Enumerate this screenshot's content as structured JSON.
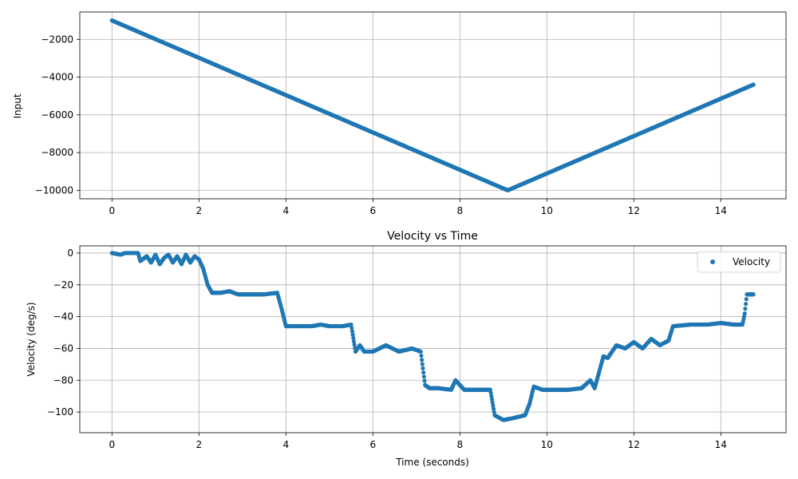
{
  "colors": {
    "series": "#1f77b4",
    "grid": "#b0b0b0",
    "axes": "#000000",
    "background": "#ffffff"
  },
  "chart_data": [
    {
      "type": "scatter",
      "title": "",
      "xlabel": "",
      "ylabel": "Input",
      "xlim": [
        -0.74,
        15.5
      ],
      "ylim": [
        -10450,
        -550
      ],
      "xticks": [
        0,
        2,
        4,
        6,
        8,
        10,
        12,
        14
      ],
      "yticks": [
        -2000,
        -4000,
        -6000,
        -8000,
        -10000
      ],
      "xtick_labels": [
        "0",
        "2",
        "4",
        "6",
        "8",
        "10",
        "12",
        "14"
      ],
      "ytick_labels": [
        "−2000",
        "−4000",
        "−6000",
        "−8000",
        "−10000"
      ],
      "grid": true,
      "legend": null,
      "series": [
        {
          "color": "#1f77b4",
          "x": [
            0,
            9.1,
            14.75
          ],
          "y": [
            -1000,
            -10000,
            -4400
          ],
          "description_points_dense": true
        }
      ]
    },
    {
      "type": "scatter",
      "title": "Velocity vs Time",
      "xlabel": "Time (seconds)",
      "ylabel": "Velocity (deg/s)",
      "xlim": [
        -0.74,
        15.5
      ],
      "ylim": [
        -113,
        4.5
      ],
      "xticks": [
        0,
        2,
        4,
        6,
        8,
        10,
        12,
        14
      ],
      "yticks": [
        0,
        -20,
        -40,
        -60,
        -80,
        -100
      ],
      "xtick_labels": [
        "0",
        "2",
        "4",
        "6",
        "8",
        "10",
        "12",
        "14"
      ],
      "ytick_labels": [
        "0",
        "−20",
        "−40",
        "−60",
        "−80",
        "−100"
      ],
      "grid": true,
      "legend": {
        "position": "top-right",
        "entries": [
          "Velocity"
        ]
      },
      "series": [
        {
          "name": "Velocity",
          "color": "#1f77b4",
          "x": [
            0,
            0.2,
            0.3,
            0.6,
            0.65,
            0.8,
            0.9,
            1.0,
            1.1,
            1.2,
            1.3,
            1.4,
            1.5,
            1.6,
            1.7,
            1.8,
            1.9,
            2.0,
            2.1,
            2.2,
            2.3,
            2.5,
            2.7,
            2.9,
            3.2,
            3.5,
            3.8,
            3.9,
            4.0,
            4.3,
            4.6,
            4.8,
            5.0,
            5.3,
            5.5,
            5.6,
            5.7,
            5.8,
            6.0,
            6.3,
            6.6,
            6.9,
            7.1,
            7.2,
            7.3,
            7.5,
            7.8,
            7.9,
            8.1,
            8.4,
            8.7,
            8.8,
            9.0,
            9.2,
            9.5,
            9.6,
            9.7,
            9.9,
            10.2,
            10.5,
            10.8,
            11.0,
            11.1,
            11.3,
            11.4,
            11.6,
            11.8,
            12.0,
            12.2,
            12.4,
            12.6,
            12.8,
            12.9,
            13.3,
            13.7,
            14.0,
            14.3,
            14.5,
            14.55,
            14.6,
            14.75
          ],
          "y": [
            0,
            -1,
            0,
            0,
            -5,
            -2,
            -6,
            -1,
            -7,
            -3,
            -1,
            -6,
            -2,
            -7,
            -1,
            -6,
            -2,
            -4,
            -10,
            -20,
            -25,
            -25,
            -24,
            -26,
            -26,
            -26,
            -25,
            -35,
            -46,
            -46,
            -46,
            -45,
            -46,
            -46,
            -45,
            -62,
            -58,
            -62,
            -62,
            -58,
            -62,
            -60,
            -62,
            -83,
            -85,
            -85,
            -86,
            -80,
            -86,
            -86,
            -86,
            -102,
            -105,
            -104,
            -102,
            -95,
            -84,
            -86,
            -86,
            -86,
            -85,
            -80,
            -85,
            -65,
            -66,
            -58,
            -60,
            -56,
            -60,
            -54,
            -58,
            -55,
            -46,
            -45,
            -45,
            -44,
            -45,
            -45,
            -38,
            -26,
            -26
          ],
          "description_points_dense": true
        }
      ]
    }
  ]
}
